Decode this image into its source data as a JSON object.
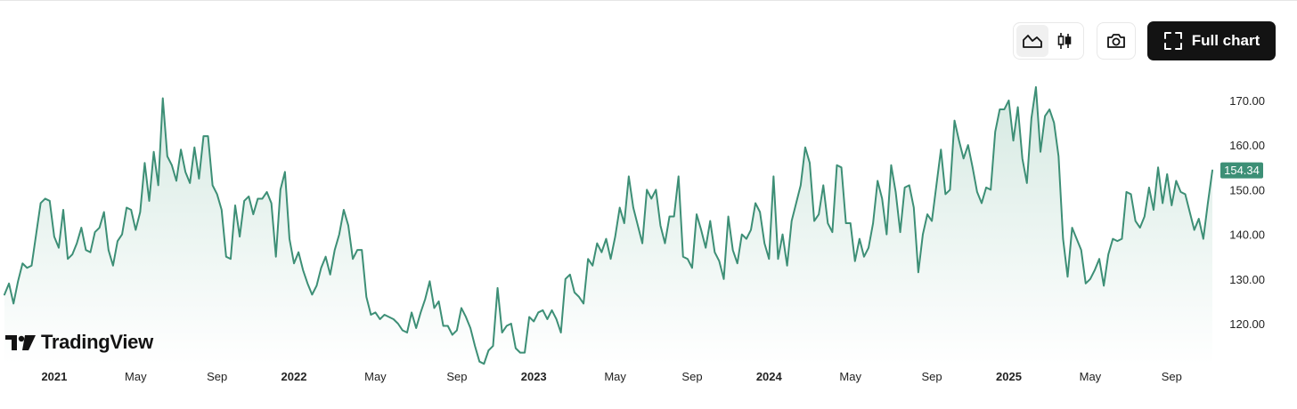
{
  "toolbar": {
    "full_chart_label": "Full chart",
    "line_icon": "area-chart-icon",
    "candle_icon": "candlestick-icon",
    "camera_icon": "camera-icon",
    "fullscreen_icon": "fullscreen-icon"
  },
  "logo": {
    "text": "TradingView"
  },
  "colors": {
    "line": "#3d8f76",
    "area_top": "#d3e8e0",
    "area_bottom": "#ffffff",
    "badge": "#3d8f76"
  },
  "chart_data": {
    "type": "area",
    "y_ticks": [
      "170.00",
      "160.00",
      "150.00",
      "140.00",
      "130.00",
      "120.00"
    ],
    "y_tick_values": [
      170,
      160,
      150,
      140,
      130,
      120
    ],
    "ylim": [
      110.5,
      176.3
    ],
    "x_ticks": [
      {
        "label": "2021",
        "year": true,
        "t": 11
      },
      {
        "label": "May",
        "year": false,
        "t": 29
      },
      {
        "label": "Sep",
        "year": false,
        "t": 47
      },
      {
        "label": "2022",
        "year": true,
        "t": 64
      },
      {
        "label": "May",
        "year": false,
        "t": 82
      },
      {
        "label": "Sep",
        "year": false,
        "t": 100
      },
      {
        "label": "2023",
        "year": true,
        "t": 117
      },
      {
        "label": "May",
        "year": false,
        "t": 135
      },
      {
        "label": "Sep",
        "year": false,
        "t": 152
      },
      {
        "label": "2024",
        "year": true,
        "t": 169
      },
      {
        "label": "May",
        "year": false,
        "t": 187
      },
      {
        "label": "Sep",
        "year": false,
        "t": 205
      },
      {
        "label": "2025",
        "year": true,
        "t": 222
      },
      {
        "label": "May",
        "year": false,
        "t": 240
      },
      {
        "label": "Sep",
        "year": false,
        "t": 258
      }
    ],
    "last_price_label": "154.34",
    "last_price": 154.34,
    "values": [
      126.5,
      129,
      124.5,
      129.5,
      133.5,
      132.5,
      133,
      140,
      147,
      148,
      147.5,
      139.5,
      137,
      145.5,
      134.5,
      135.5,
      138,
      141.5,
      136.5,
      136,
      140.5,
      141.5,
      145,
      136.5,
      133,
      138.5,
      140,
      146,
      145.5,
      141,
      145,
      156,
      147.5,
      158.5,
      151,
      170.5,
      157.5,
      155.5,
      152,
      159,
      154,
      151.5,
      159.5,
      152.5,
      162,
      162,
      151,
      149,
      145.5,
      135,
      134.5,
      146.5,
      139.5,
      147.5,
      148.5,
      144.5,
      148,
      148,
      149.5,
      147,
      135,
      150,
      154,
      139,
      133.5,
      136,
      132,
      129,
      126.5,
      128.5,
      132.5,
      135,
      131,
      136.5,
      140,
      145.5,
      142,
      134.5,
      136.5,
      136.5,
      126,
      122,
      122.5,
      121,
      122,
      121.5,
      121,
      120,
      118.5,
      118,
      122.5,
      119,
      122.5,
      125.5,
      129.5,
      123.5,
      125,
      119.5,
      119.5,
      117.5,
      118.5,
      123.5,
      121.5,
      119,
      115,
      111.5,
      111,
      114,
      115,
      128,
      118,
      119.5,
      120,
      114.5,
      113.5,
      113.5,
      121.5,
      120.5,
      122.5,
      123,
      121,
      123,
      121,
      118,
      130,
      131,
      127,
      126,
      124.5,
      134.5,
      133,
      138,
      136,
      139,
      134.5,
      139.5,
      146,
      142.5,
      153,
      146,
      142,
      138,
      150,
      148,
      150,
      142,
      138,
      144,
      144,
      153,
      135,
      134.5,
      132.5,
      144.5,
      141,
      137,
      143,
      136,
      134,
      130,
      144,
      136.5,
      133.5,
      140,
      139,
      141,
      147,
      145,
      138,
      134.5,
      153,
      134.5,
      140,
      133,
      143,
      147,
      151,
      159.5,
      156,
      143,
      144.5,
      151,
      142.5,
      140.5,
      155.5,
      155,
      142.5,
      142.5,
      134,
      139,
      135,
      137,
      142.5,
      152,
      148,
      140,
      155.5,
      149.5,
      140.5,
      150.5,
      151,
      146,
      131.5,
      140,
      144.5,
      143,
      151,
      159,
      149,
      150,
      165.5,
      161,
      157,
      160,
      155,
      149.5,
      147,
      150.5,
      150,
      163,
      168,
      168,
      170,
      161,
      168.5,
      157,
      151.5,
      166,
      173,
      158.5,
      166.5,
      168,
      165,
      157.5,
      139,
      130.5,
      141.5,
      139,
      136.5,
      129,
      130,
      132,
      134.5,
      128.5,
      135.5,
      139,
      138.5,
      139,
      149.5,
      149,
      143,
      141.5,
      144,
      150.5,
      145.5,
      155,
      147,
      153.5,
      146.5,
      152,
      149.5,
      149,
      145,
      141,
      143.5,
      139,
      147,
      154.34
    ]
  }
}
